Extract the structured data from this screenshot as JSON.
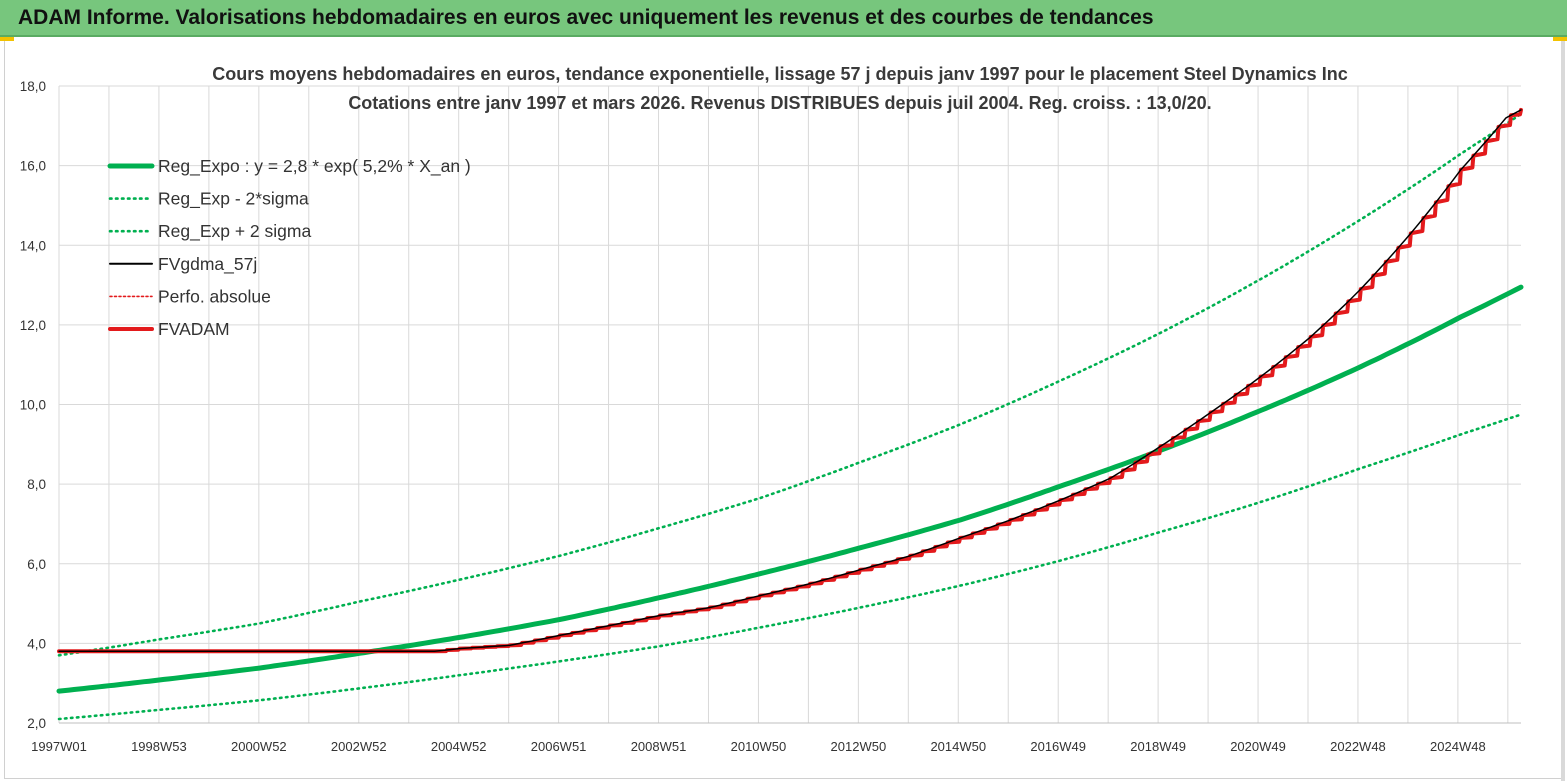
{
  "page": {
    "banner_title": "ADAM Informe. Valorisations hebdomadaires en euros avec uniquement les revenus et des courbes de tendances"
  },
  "colors": {
    "banner": "#77c67d",
    "green": "#00b050",
    "red": "#e31a1c",
    "black": "#000000",
    "grid": "#d9d9d9"
  },
  "chart_data": {
    "type": "line",
    "title": "Cours moyens hebdomadaires en euros, tendance exponentielle, lissage 57 j depuis janv 1997 pour le placement Steel Dynamics Inc",
    "subtitle": "Cotations entre janv 1997 et mars 2026. Revenus DISTRIBUES depuis juil 2004. Reg. croiss. : 13,0/20.",
    "xlabel": "",
    "ylabel": "",
    "ylim": [
      2,
      18
    ],
    "xlim": [
      1997.0,
      2026.2
    ],
    "y_ticks": [
      "2,0",
      "4,0",
      "6,0",
      "8,0",
      "10,0",
      "12,0",
      "14,0",
      "16,0",
      "18,0"
    ],
    "x_ticks": [
      "1997W01",
      "1998W53",
      "2000W52",
      "2002W52",
      "2004W52",
      "2006W51",
      "2008W51",
      "2010W50",
      "2012W50",
      "2014W50",
      "2016W49",
      "2018W49",
      "2020W49",
      "2022W48",
      "2024W48"
    ],
    "grid": true,
    "legend_position": "top-left",
    "series": [
      {
        "name": "Reg_Expo : y = 2,8 * exp( 5,2% *  X_an )",
        "style": "solid-thick",
        "color": "#00b050",
        "x": [
          1997,
          1999,
          2001,
          2003,
          2005,
          2007,
          2009,
          2011,
          2013,
          2015,
          2017,
          2019,
          2021,
          2023,
          2025,
          2026.2
        ],
        "y": [
          2.8,
          3.08,
          3.38,
          3.75,
          4.15,
          4.6,
          5.15,
          5.75,
          6.4,
          7.1,
          7.95,
          8.85,
          9.85,
          10.95,
          12.2,
          12.95
        ]
      },
      {
        "name": "Reg_Exp - 2*sigma",
        "style": "dotted",
        "color": "#00b050",
        "x": [
          1997,
          1999,
          2001,
          2003,
          2005,
          2007,
          2009,
          2011,
          2013,
          2015,
          2017,
          2019,
          2021,
          2023,
          2025,
          2026.2
        ],
        "y": [
          2.1,
          2.33,
          2.57,
          2.87,
          3.2,
          3.55,
          3.93,
          4.4,
          4.9,
          5.45,
          6.08,
          6.8,
          7.55,
          8.4,
          9.25,
          9.75
        ]
      },
      {
        "name": "Reg_Exp + 2 sigma",
        "style": "dotted",
        "color": "#00b050",
        "x": [
          1997,
          1999,
          2001,
          2003,
          2005,
          2007,
          2009,
          2011,
          2013,
          2015,
          2017,
          2019,
          2021,
          2023,
          2025,
          2026.2
        ],
        "y": [
          3.7,
          4.1,
          4.5,
          5.05,
          5.6,
          6.2,
          6.9,
          7.65,
          8.55,
          9.5,
          10.6,
          11.8,
          13.15,
          14.65,
          16.3,
          17.3
        ]
      },
      {
        "name": "FVgdma_57j",
        "style": "solid-thin",
        "color": "#000000",
        "x": [
          1997,
          2004.5,
          2005,
          2006,
          2007,
          2008,
          2009,
          2010,
          2011,
          2012,
          2013,
          2014,
          2015,
          2016,
          2017,
          2018,
          2019,
          2020,
          2021,
          2022,
          2023,
          2024,
          2025,
          2025.9,
          2026.2
        ],
        "y": [
          3.8,
          3.8,
          3.87,
          3.95,
          4.2,
          4.45,
          4.7,
          4.9,
          5.2,
          5.5,
          5.85,
          6.2,
          6.65,
          7.1,
          7.6,
          8.15,
          8.95,
          9.8,
          10.7,
          11.7,
          12.9,
          14.3,
          15.9,
          17.2,
          17.4
        ]
      },
      {
        "name": "Perfo. absolue",
        "style": "dotted-thin",
        "color": "#e31a1c",
        "x": [],
        "y": []
      },
      {
        "name": "FVADAM",
        "style": "solid-thick-stepped",
        "color": "#e31a1c",
        "x": [
          1997,
          2004.5,
          2005,
          2006,
          2007,
          2008,
          2009,
          2010,
          2011,
          2012,
          2013,
          2014,
          2015,
          2016,
          2017,
          2018,
          2019,
          2020,
          2021,
          2022,
          2023,
          2024,
          2025,
          2025.9,
          2026.2
        ],
        "y": [
          3.8,
          3.8,
          3.87,
          3.95,
          4.2,
          4.45,
          4.7,
          4.9,
          5.2,
          5.5,
          5.85,
          6.2,
          6.65,
          7.1,
          7.6,
          8.15,
          8.95,
          9.8,
          10.7,
          11.7,
          12.9,
          14.3,
          15.9,
          17.2,
          17.4
        ]
      }
    ]
  }
}
